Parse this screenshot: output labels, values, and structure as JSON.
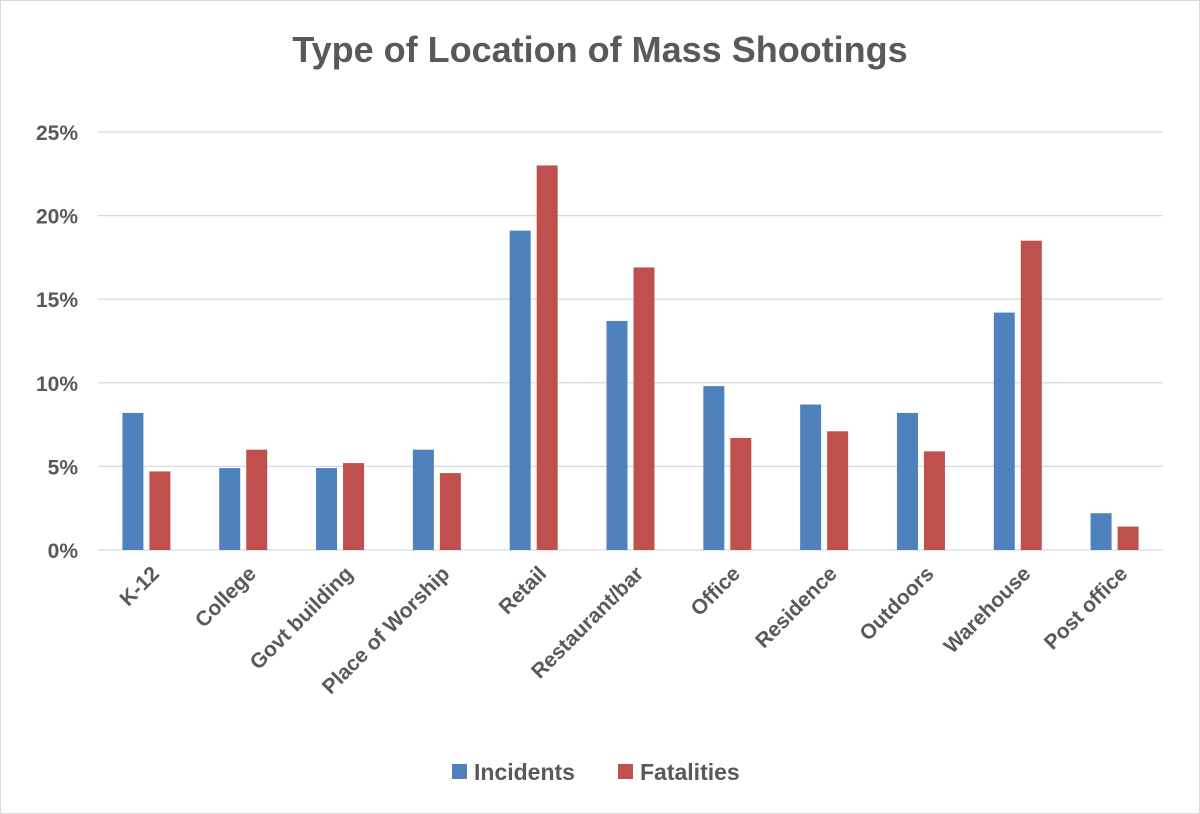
{
  "chart_data": {
    "type": "bar",
    "title": "Type of Location of Mass Shootings",
    "xlabel": "",
    "ylabel": "",
    "ylim": [
      0,
      25
    ],
    "y_ticks": [
      "0%",
      "5%",
      "10%",
      "15%",
      "20%",
      "25%"
    ],
    "y_tick_values": [
      0,
      5,
      10,
      15,
      20,
      25
    ],
    "grid": true,
    "legend_position": "bottom",
    "categories": [
      "K-12",
      "College",
      "Govt building",
      "Place of Worship",
      "Retail",
      "Restaurant/bar",
      "Office",
      "Residence",
      "Outdoors",
      "Warehouse",
      "Post office"
    ],
    "series": [
      {
        "name": "Incidents",
        "color": "#4f81bd",
        "values": [
          8.2,
          4.9,
          4.9,
          6.0,
          19.1,
          13.7,
          9.8,
          8.7,
          8.2,
          14.2,
          2.2
        ]
      },
      {
        "name": "Fatalities",
        "color": "#c0504d",
        "values": [
          4.7,
          6.0,
          5.2,
          4.6,
          23.0,
          16.9,
          6.7,
          7.1,
          5.9,
          18.5,
          1.4
        ]
      }
    ]
  }
}
